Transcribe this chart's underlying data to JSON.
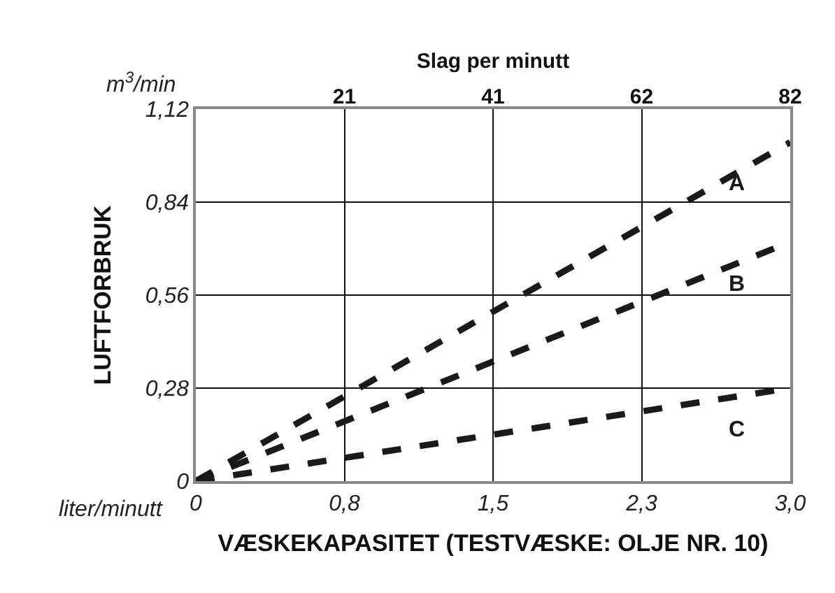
{
  "chart_data": {
    "type": "line",
    "xlabel": "VÆSKEKAPASITET (TESTVÆSKE: OLJE NR. 10)",
    "ylabel": "LUFTFORBRUK",
    "x2label": "Slag per minutt",
    "annotations": [
      "m$^{3}$/min",
      "liter/minutt"
    ],
    "series": [
      {
        "name": "A",
        "color": "#1a1a1a",
        "values": [
          0,
          1.02
        ]
      },
      {
        "name": "B",
        "color": "#1a1a1a",
        "values": [
          0,
          0.72
        ]
      },
      {
        "name": "C",
        "color": "#1a1a1a",
        "values": [
          0,
          0.28
        ]
      }
    ],
    "x": [
      0,
      3.0
    ],
    "xlim": [
      0,
      3.0
    ],
    "xticks": [
      {
        "value": 0,
        "label": "0"
      },
      {
        "value": 0.75,
        "label": "0,8"
      },
      {
        "value": 1.5,
        "label": "1,5"
      },
      {
        "value": 2.25,
        "label": "2,3"
      },
      {
        "value": 3.0,
        "label": "3,0"
      }
    ],
    "x2lim": [
      0,
      82
    ],
    "x2ticks": [
      {
        "value": 20.5,
        "label": "21"
      },
      {
        "value": 41,
        "label": "41"
      },
      {
        "value": 61.5,
        "label": "62"
      },
      {
        "value": 82,
        "label": "82"
      }
    ],
    "ylim": [
      0,
      1.12
    ],
    "yticks": [
      0,
      {
        "value": 0.28,
        "label": "0,28"
      },
      {
        "value": 0.56,
        "label": "0,56"
      },
      {
        "value": 0.84,
        "label": "0,84"
      },
      {
        "value": 1.12,
        "label": "1,12"
      }
    ],
    "grid": true,
    "legend": false,
    "marker": "none",
    "line_style": "dashed"
  }
}
